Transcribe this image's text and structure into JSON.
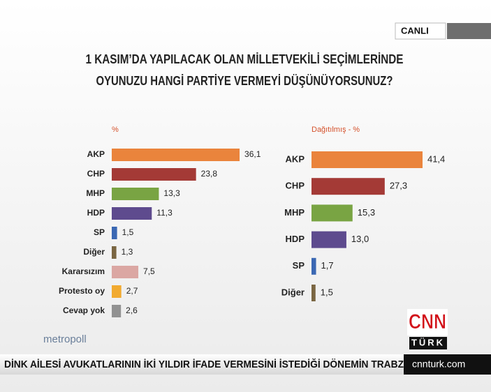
{
  "live_label": "CANLI",
  "title": [
    "1 KASIM’DA YAPILACAK OLAN MİLLETVEKİLİ SEÇİMLERİNDE",
    "OYUNUZU HANGİ PARTİYE VERMEYİ DÜŞÜNÜYORSUNUZ?"
  ],
  "chart_data": [
    {
      "type": "bar",
      "orientation": "horizontal",
      "axis_label": "%",
      "categories": [
        "AKP",
        "CHP",
        "MHP",
        "HDP",
        "SP",
        "Diğer",
        "Kararsızım",
        "Protesto oy",
        "Cevap yok"
      ],
      "values": [
        36.1,
        23.8,
        13.3,
        11.3,
        1.5,
        1.3,
        7.5,
        2.7,
        2.6
      ],
      "value_labels": [
        "36,1",
        "23,8",
        "13,3",
        "11,3",
        "1,5",
        "1,3",
        "7,5",
        "2,7",
        "2,6"
      ],
      "colors": [
        "#ea843c",
        "#a43a36",
        "#79a443",
        "#5e4b8e",
        "#3b68b3",
        "#7a6642",
        "#dba7a3",
        "#f1aa30",
        "#929292"
      ]
    },
    {
      "type": "bar",
      "orientation": "horizontal",
      "axis_label": "Dağıtılmış - %",
      "categories": [
        "AKP",
        "CHP",
        "MHP",
        "HDP",
        "SP",
        "Diğer"
      ],
      "values": [
        41.4,
        27.3,
        15.3,
        13.0,
        1.7,
        1.5
      ],
      "value_labels": [
        "41,4",
        "27,3",
        "15,3",
        "13,0",
        "1,7",
        "1,5"
      ],
      "colors": [
        "#ea843c",
        "#a43a36",
        "#79a443",
        "#5e4b8e",
        "#3b68b3",
        "#7a6642"
      ]
    }
  ],
  "source": "metropoll",
  "ticker": "DİNK AİLESİ AVUKATLARININ İKİ YILDIR İFADE VERMESİNİ İSTEDİĞİ DÖNEMİN TRABZ",
  "logo": {
    "top": "CNN",
    "bottom": "TÜRK"
  },
  "website": "cnnturk.com"
}
